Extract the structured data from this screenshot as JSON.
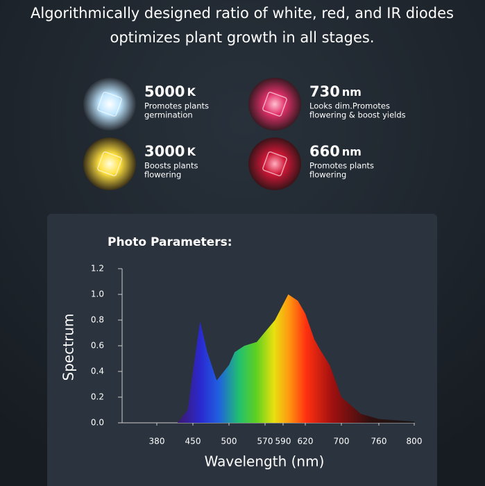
{
  "header": {
    "lines": [
      "Algorithmically designed ratio of white, red, and IR diodes",
      "optimizes plant growth in all stages."
    ]
  },
  "diodes": [
    {
      "value": "5000",
      "unit": "K",
      "description": [
        "Promotes plants",
        "germination"
      ]
    },
    {
      "value": "730",
      "unit": "nm",
      "description": [
        "Looks dim.Promotes",
        "flowering & boost yields"
      ]
    },
    {
      "value": "3000",
      "unit": "K",
      "description": [
        "Boosts plants",
        "flowering"
      ]
    },
    {
      "value": "660",
      "unit": "nm",
      "description": [
        "Promotes plants",
        "flowering"
      ]
    }
  ],
  "chart_data": {
    "type": "area",
    "title": "Photo Parameters:",
    "x_label": "Wavelength (nm)",
    "y_label": "Spectrum",
    "x": [
      420,
      440,
      450,
      460,
      470,
      483,
      500,
      511,
      530,
      554,
      581,
      597,
      610,
      620,
      640,
      651,
      674,
      700,
      731,
      760,
      800
    ],
    "values": [
      0,
      0.1,
      0.4,
      0.79,
      0.55,
      0.33,
      0.45,
      0.55,
      0.6,
      0.63,
      0.8,
      1.0,
      0.95,
      0.85,
      0.65,
      0.58,
      0.45,
      0.2,
      0.07,
      0.03,
      0.01
    ],
    "xlim": [
      310,
      800
    ],
    "xticks": [
      380,
      450,
      500,
      570,
      590,
      620,
      700,
      760,
      800
    ],
    "ylim": [
      0,
      1.2
    ],
    "yticks": [
      {
        "value": 0,
        "label": "0.0"
      },
      0.2,
      0.4,
      0.6,
      0.8,
      {
        "value": 1,
        "label": "1.0"
      },
      1.2
    ]
  }
}
